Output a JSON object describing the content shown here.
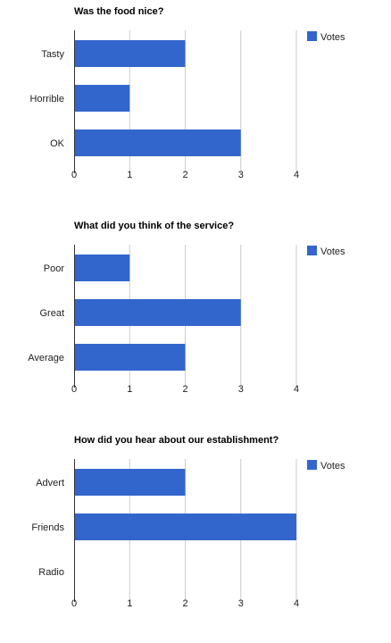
{
  "chart_data": [
    {
      "type": "bar",
      "orientation": "horizontal",
      "title": "Was the food nice?",
      "categories": [
        "Tasty",
        "Horrible",
        "OK"
      ],
      "series": [
        {
          "name": "Votes",
          "values": [
            2,
            1,
            3
          ]
        }
      ],
      "xlim": [
        0,
        4
      ],
      "xticks": [
        "0",
        "1",
        "2",
        "3",
        "4"
      ],
      "grid": true,
      "legend_position": "top-right",
      "bar_color": "#3366cc"
    },
    {
      "type": "bar",
      "orientation": "horizontal",
      "title": "What did you think of the service?",
      "categories": [
        "Poor",
        "Great",
        "Average"
      ],
      "series": [
        {
          "name": "Votes",
          "values": [
            1,
            3,
            2
          ]
        }
      ],
      "xlim": [
        0,
        4
      ],
      "xticks": [
        "0",
        "1",
        "2",
        "3",
        "4"
      ],
      "grid": true,
      "legend_position": "top-right",
      "bar_color": "#3366cc"
    },
    {
      "type": "bar",
      "orientation": "horizontal",
      "title": "How did you hear about our establishment?",
      "categories": [
        "Advert",
        "Friends",
        "Radio"
      ],
      "series": [
        {
          "name": "Votes",
          "values": [
            2,
            4,
            0
          ]
        }
      ],
      "xlim": [
        0,
        4
      ],
      "xticks": [
        "0",
        "1",
        "2",
        "3",
        "4"
      ],
      "grid": true,
      "legend_position": "top-right",
      "bar_color": "#3366cc"
    }
  ]
}
